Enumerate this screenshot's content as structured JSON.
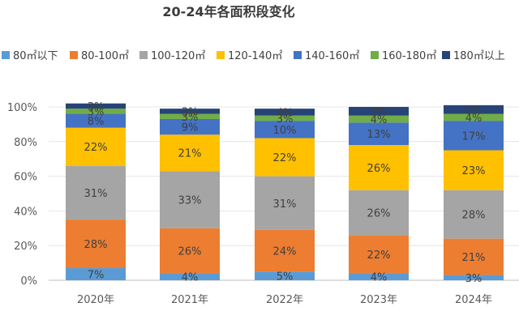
{
  "chart_data": {
    "type": "bar",
    "stacked": true,
    "percent": true,
    "title": "20-24年各面积段变化",
    "categories": [
      "2020年",
      "2021年",
      "2022年",
      "2023年",
      "2024年"
    ],
    "ylim": [
      0,
      100
    ],
    "yticks": [
      "0%",
      "20%",
      "40%",
      "60%",
      "80%",
      "100%"
    ],
    "grid": true,
    "legend_position": "top",
    "series": [
      {
        "name": "80㎡以下",
        "color": "#5b9bd5",
        "values": [
          7,
          4,
          5,
          4,
          3
        ]
      },
      {
        "name": "80-100㎡",
        "color": "#ed7d31",
        "values": [
          28,
          26,
          24,
          22,
          21
        ]
      },
      {
        "name": "100-120㎡",
        "color": "#a5a5a5",
        "values": [
          31,
          33,
          31,
          26,
          28
        ]
      },
      {
        "name": "120-140㎡",
        "color": "#ffc000",
        "values": [
          22,
          21,
          22,
          26,
          23
        ]
      },
      {
        "name": "140-160㎡",
        "color": "#4472c4",
        "values": [
          8,
          9,
          10,
          13,
          17
        ]
      },
      {
        "name": "160-180㎡",
        "color": "#70ad47",
        "values": [
          3,
          3,
          3,
          4,
          4
        ]
      },
      {
        "name": "180㎡以上",
        "color": "#264478",
        "values": [
          3,
          3,
          4,
          5,
          5
        ]
      }
    ]
  }
}
